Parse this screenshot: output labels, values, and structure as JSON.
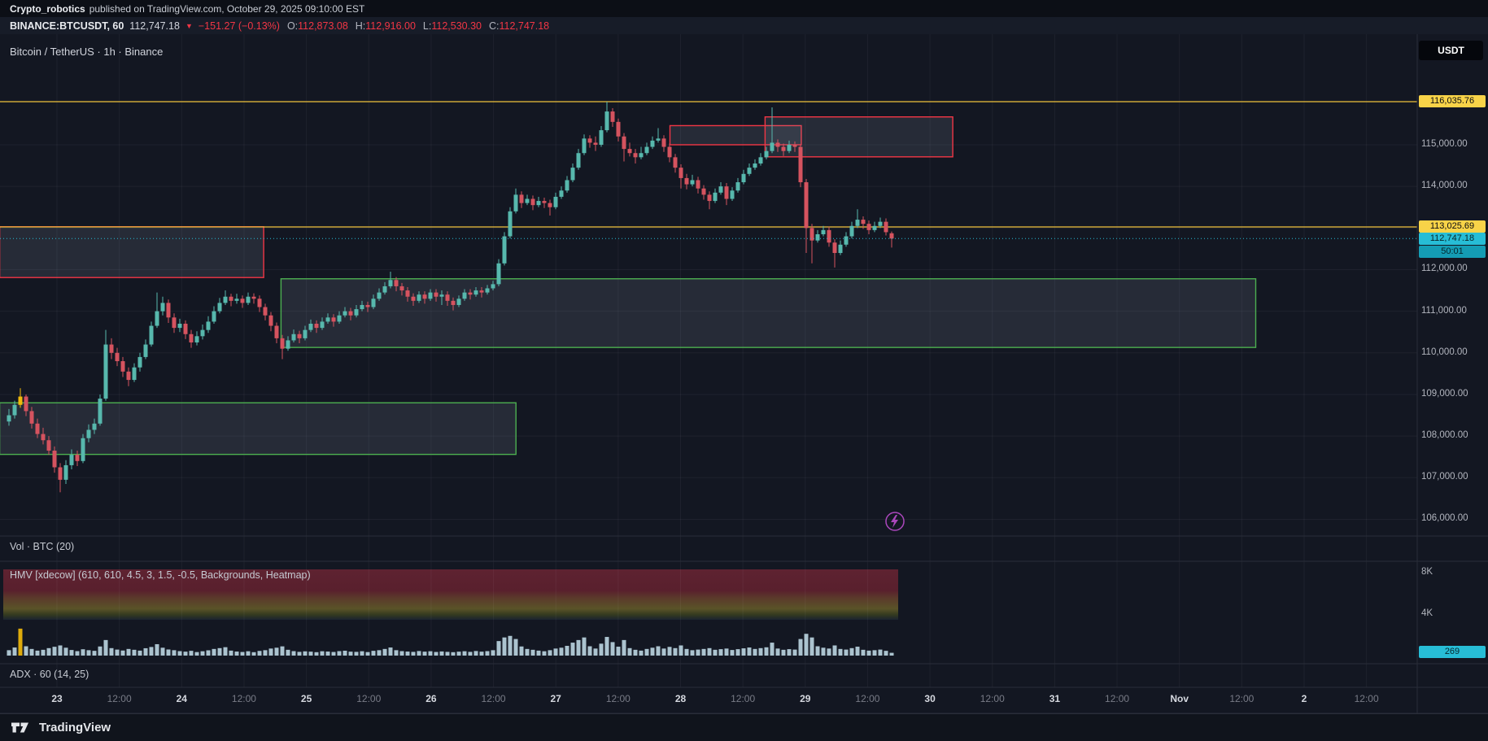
{
  "publish_bar": {
    "author": "Crypto_robotics",
    "text": "published on TradingView.com, October 29, 2025 09:10:00 EST"
  },
  "symbol_bar": {
    "symbol": "BINANCE:BTCUSDT, 60",
    "last": "112,747.18",
    "direction_icon": "▼",
    "change": "−151.27 (−0.13%)",
    "ohlc": [
      {
        "label": "O:",
        "value": "112,873.08"
      },
      {
        "label": "H:",
        "value": "112,916.00"
      },
      {
        "label": "L:",
        "value": "112,530.30"
      },
      {
        "label": "C:",
        "value": "112,747.18"
      }
    ]
  },
  "chart_header": {
    "title": "Bitcoin / TetherUS · 1h · Binance"
  },
  "currency_button": {
    "label": "USDT"
  },
  "panes": {
    "vol_label": "Vol · BTC (20)",
    "hmv_label": "HMV [xdecow] (610, 610, 4.5, 3, 1.5, -0.5, Backgrounds, Heatmap)",
    "adx_label": "ADX · 60 (14, 25)",
    "volume_axis": [
      {
        "v": 8000,
        "label": "8K"
      },
      {
        "v": 4000,
        "label": "4K"
      }
    ],
    "volume_current": "269"
  },
  "price_axis": {
    "labels": [
      {
        "price": 115000,
        "label": "115,000.00"
      },
      {
        "price": 114000,
        "label": "114,000.00"
      },
      {
        "price": 112000,
        "label": "112,000.00"
      },
      {
        "price": 111000,
        "label": "111,000.00"
      },
      {
        "price": 110000,
        "label": "110,000.00"
      },
      {
        "price": 109000,
        "label": "109,000.00"
      },
      {
        "price": 108000,
        "label": "108,000.00"
      },
      {
        "price": 107000,
        "label": "107,000.00"
      },
      {
        "price": 106000,
        "label": "106,000.00"
      }
    ]
  },
  "time_axis": {
    "labels": [
      {
        "text": "23",
        "major": true
      },
      {
        "text": "12:00",
        "major": false
      },
      {
        "text": "24",
        "major": true
      },
      {
        "text": "12:00",
        "major": false
      },
      {
        "text": "25",
        "major": true
      },
      {
        "text": "12:00",
        "major": false
      },
      {
        "text": "26",
        "major": true
      },
      {
        "text": "12:00",
        "major": false
      },
      {
        "text": "27",
        "major": true
      },
      {
        "text": "12:00",
        "major": false
      },
      {
        "text": "28",
        "major": true
      },
      {
        "text": "12:00",
        "major": false
      },
      {
        "text": "29",
        "major": true
      },
      {
        "text": "12:00",
        "major": false
      },
      {
        "text": "30",
        "major": true
      },
      {
        "text": "12:00",
        "major": false
      },
      {
        "text": "31",
        "major": true
      },
      {
        "text": "12:00",
        "major": false
      },
      {
        "text": "Nov",
        "major": true
      },
      {
        "text": "12:00",
        "major": false
      },
      {
        "text": "2",
        "major": true
      },
      {
        "text": "12:00",
        "major": false
      }
    ]
  },
  "footer": {
    "brand": "TradingView"
  },
  "colors": {
    "bg": "#131722",
    "up": "#57b8ad",
    "down": "#d5535f",
    "yellow_line": "#f0c23c",
    "yellow_label_bg": "#f8d348",
    "cyan_label_bg": "#27bdd6",
    "zone_fill": "rgba(150,160,182,0.15)",
    "grid": "rgba(240,243,250,0.05)",
    "sep": "#2a2e39",
    "vol_bar": "#b9d2de",
    "vol_highlight": "#f0b90b",
    "boost": "#ab47bc",
    "heatmap_stops": [
      [
        "0",
        "#5e2231"
      ],
      [
        "0.42",
        "#59202d"
      ],
      [
        "0.56",
        "#5b392b"
      ],
      [
        "0.78",
        "#5a5328"
      ],
      [
        "0.9",
        "#343a20"
      ],
      [
        "1",
        "#1b2330"
      ]
    ]
  },
  "chart_data": {
    "type": "candlestick",
    "symbol": "BINANCE:BTCUSDT",
    "interval": "1h",
    "title": "Bitcoin / TetherUS · 1h · Binance",
    "ylim": [
      105800,
      117700
    ],
    "grid_prices": [
      106000,
      107000,
      108000,
      109000,
      110000,
      111000,
      112000,
      113000,
      114000,
      115000
    ],
    "price_lines": [
      {
        "price": 116035.76,
        "label": "116,035.76"
      },
      {
        "price": 113025.69,
        "label": "113,025.69"
      }
    ],
    "current": {
      "price": 112747.18,
      "label": "112,747.18",
      "countdown": "50:01"
    },
    "highlight_candle_index": 2,
    "zones": [
      {
        "name": "supply-left",
        "border": "#f23645",
        "price_top": 113030,
        "price_bottom": 111810,
        "i1": -1.2,
        "i2": 44.3
      },
      {
        "name": "demand-main",
        "border": "#4caf50",
        "price_top": 111780,
        "price_bottom": 110130,
        "i1": 48.2,
        "i2": 218.5
      },
      {
        "name": "demand-low",
        "border": "#4caf50",
        "price_top": 108800,
        "price_bottom": 107560,
        "i1": -1.2,
        "i2": 88.6
      },
      {
        "name": "supply-a",
        "border": "#f23645",
        "price_top": 115460,
        "price_bottom": 115000,
        "i1": 116.5,
        "i2": 138.7
      },
      {
        "name": "supply-b",
        "border": "#f23645",
        "price_top": 115670,
        "price_bottom": 114710,
        "i1": 133.2,
        "i2": 165.3
      }
    ],
    "ohlc": [
      [
        108350,
        108650,
        108250,
        108500
      ],
      [
        108500,
        108850,
        108420,
        108750
      ],
      [
        108750,
        109150,
        108680,
        108950
      ],
      [
        108950,
        109000,
        108480,
        108600
      ],
      [
        108600,
        108700,
        108180,
        108300
      ],
      [
        108300,
        108420,
        107950,
        108050
      ],
      [
        108050,
        108200,
        107800,
        107900
      ],
      [
        107900,
        108000,
        107550,
        107650
      ],
      [
        107650,
        107750,
        107120,
        107250
      ],
      [
        107250,
        107350,
        106650,
        106950
      ],
      [
        106950,
        107420,
        106850,
        107300
      ],
      [
        107300,
        107680,
        107200,
        107550
      ],
      [
        107550,
        107650,
        107280,
        107400
      ],
      [
        107400,
        108050,
        107350,
        107950
      ],
      [
        107950,
        108280,
        107850,
        108150
      ],
      [
        108150,
        108420,
        108050,
        108300
      ],
      [
        108300,
        109000,
        108250,
        108900
      ],
      [
        108900,
        110550,
        108850,
        110200
      ],
      [
        110200,
        110350,
        109850,
        110000
      ],
      [
        110000,
        110120,
        109680,
        109800
      ],
      [
        109800,
        109900,
        109420,
        109550
      ],
      [
        109550,
        109650,
        109200,
        109350
      ],
      [
        109350,
        109750,
        109300,
        109650
      ],
      [
        109650,
        110000,
        109550,
        109900
      ],
      [
        109900,
        110320,
        109850,
        110200
      ],
      [
        110200,
        110750,
        110150,
        110650
      ],
      [
        110650,
        111450,
        110600,
        111000
      ],
      [
        111000,
        111350,
        110900,
        111200
      ],
      [
        111200,
        111280,
        110720,
        110850
      ],
      [
        110850,
        110950,
        110480,
        110600
      ],
      [
        110600,
        110820,
        110500,
        110700
      ],
      [
        110700,
        110780,
        110330,
        110450
      ],
      [
        110450,
        110550,
        110120,
        110250
      ],
      [
        110250,
        110520,
        110180,
        110400
      ],
      [
        110400,
        110680,
        110320,
        110550
      ],
      [
        110550,
        110880,
        110480,
        110750
      ],
      [
        110750,
        111120,
        110700,
        111000
      ],
      [
        111000,
        111320,
        110950,
        111200
      ],
      [
        111200,
        111500,
        111150,
        111350
      ],
      [
        111350,
        111420,
        111120,
        111250
      ],
      [
        111250,
        111420,
        111180,
        111300
      ],
      [
        111300,
        111380,
        111080,
        111200
      ],
      [
        111200,
        111450,
        111150,
        111350
      ],
      [
        111350,
        111430,
        111180,
        111300
      ],
      [
        111300,
        111380,
        110980,
        111100
      ],
      [
        111100,
        111180,
        110780,
        110900
      ],
      [
        110900,
        110980,
        110520,
        110650
      ],
      [
        110650,
        110730,
        110230,
        110350
      ],
      [
        110350,
        110430,
        109850,
        110100
      ],
      [
        110100,
        110400,
        110050,
        110300
      ],
      [
        110300,
        110560,
        110250,
        110450
      ],
      [
        110450,
        110530,
        110230,
        110350
      ],
      [
        110350,
        110650,
        110300,
        110550
      ],
      [
        110550,
        110800,
        110500,
        110700
      ],
      [
        110700,
        110780,
        110480,
        110600
      ],
      [
        110600,
        110850,
        110550,
        110750
      ],
      [
        110750,
        110950,
        110700,
        110850
      ],
      [
        110850,
        110930,
        110630,
        110750
      ],
      [
        110750,
        111000,
        110700,
        110900
      ],
      [
        110900,
        111100,
        110850,
        111000
      ],
      [
        111000,
        111080,
        110780,
        110900
      ],
      [
        110900,
        111150,
        110850,
        111050
      ],
      [
        111050,
        111250,
        111000,
        111150
      ],
      [
        111150,
        111230,
        110980,
        111100
      ],
      [
        111100,
        111400,
        111050,
        111300
      ],
      [
        111300,
        111550,
        111250,
        111450
      ],
      [
        111450,
        111700,
        111400,
        111600
      ],
      [
        111600,
        111950,
        111550,
        111750
      ],
      [
        111750,
        111820,
        111480,
        111600
      ],
      [
        111600,
        111680,
        111380,
        111500
      ],
      [
        111500,
        111580,
        111230,
        111350
      ],
      [
        111350,
        111430,
        111130,
        111250
      ],
      [
        111250,
        111480,
        111200,
        111400
      ],
      [
        111400,
        111480,
        111180,
        111300
      ],
      [
        111300,
        111530,
        111250,
        111450
      ],
      [
        111450,
        111530,
        111230,
        111350
      ],
      [
        111350,
        111500,
        111150,
        111400
      ],
      [
        111400,
        111480,
        111130,
        111250
      ],
      [
        111250,
        111330,
        111020,
        111150
      ],
      [
        111150,
        111380,
        111100,
        111300
      ],
      [
        111300,
        111530,
        111250,
        111450
      ],
      [
        111450,
        111530,
        111280,
        111400
      ],
      [
        111400,
        111580,
        111350,
        111500
      ],
      [
        111500,
        111580,
        111330,
        111450
      ],
      [
        111450,
        111630,
        111400,
        111550
      ],
      [
        111550,
        111730,
        111500,
        111650
      ],
      [
        111650,
        112250,
        111600,
        112150
      ],
      [
        112150,
        112900,
        112100,
        112800
      ],
      [
        112800,
        113500,
        112750,
        113400
      ],
      [
        113400,
        113950,
        113350,
        113800
      ],
      [
        113800,
        113880,
        113480,
        113600
      ],
      [
        113600,
        113800,
        113550,
        113700
      ],
      [
        113700,
        113780,
        113430,
        113550
      ],
      [
        113550,
        113750,
        113500,
        113650
      ],
      [
        113650,
        113730,
        113480,
        113600
      ],
      [
        113600,
        113680,
        113300,
        113500
      ],
      [
        113500,
        113850,
        113450,
        113750
      ],
      [
        113750,
        114000,
        113700,
        113900
      ],
      [
        113900,
        114250,
        113850,
        114150
      ],
      [
        114150,
        114550,
        114100,
        114450
      ],
      [
        114450,
        114900,
        114400,
        114800
      ],
      [
        114800,
        115250,
        114750,
        115150
      ],
      [
        115150,
        115230,
        114930,
        115050
      ],
      [
        115050,
        115200,
        114850,
        115000
      ],
      [
        115000,
        115450,
        114950,
        115350
      ],
      [
        115350,
        116035,
        115300,
        115800
      ],
      [
        115800,
        115880,
        115430,
        115550
      ],
      [
        115550,
        115630,
        115080,
        115200
      ],
      [
        115200,
        115280,
        114600,
        114900
      ],
      [
        114900,
        115050,
        114720,
        114800
      ],
      [
        114800,
        114900,
        114550,
        114700
      ],
      [
        114700,
        114950,
        114650,
        114800
      ],
      [
        114800,
        115050,
        114750,
        114950
      ],
      [
        114950,
        115200,
        114900,
        115100
      ],
      [
        115100,
        115400,
        115050,
        115150
      ],
      [
        115150,
        115230,
        114830,
        114950
      ],
      [
        114950,
        115030,
        114580,
        114700
      ],
      [
        114700,
        114780,
        114330,
        114450
      ],
      [
        114450,
        114530,
        113950,
        114200
      ],
      [
        114200,
        114300,
        113930,
        114050
      ],
      [
        114050,
        114280,
        114000,
        114150
      ],
      [
        114150,
        114230,
        113830,
        113950
      ],
      [
        113950,
        114030,
        113680,
        113800
      ],
      [
        113800,
        113880,
        113450,
        113650
      ],
      [
        113650,
        113950,
        113600,
        113850
      ],
      [
        113850,
        114100,
        113800,
        114000
      ],
      [
        114000,
        114080,
        113550,
        113700
      ],
      [
        113700,
        113980,
        113650,
        113900
      ],
      [
        113900,
        114200,
        113850,
        114100
      ],
      [
        114100,
        114400,
        114050,
        114300
      ],
      [
        114300,
        114550,
        114250,
        114450
      ],
      [
        114450,
        114650,
        114400,
        114550
      ],
      [
        114550,
        114800,
        114500,
        114700
      ],
      [
        114700,
        114950,
        114650,
        114850
      ],
      [
        114850,
        115900,
        114800,
        115050
      ],
      [
        115050,
        115130,
        114830,
        114950
      ],
      [
        114950,
        115030,
        114730,
        114850
      ],
      [
        114850,
        115100,
        114800,
        115000
      ],
      [
        115000,
        115080,
        114830,
        114950
      ],
      [
        114950,
        115000,
        113980,
        114100
      ],
      [
        114100,
        114180,
        112400,
        113000
      ],
      [
        113000,
        113100,
        112150,
        112700
      ],
      [
        112700,
        112950,
        112650,
        112850
      ],
      [
        112850,
        113050,
        112800,
        112950
      ],
      [
        112950,
        113030,
        112550,
        112650
      ],
      [
        112650,
        112730,
        112050,
        112400
      ],
      [
        112400,
        112700,
        112350,
        112600
      ],
      [
        112600,
        112900,
        112550,
        112800
      ],
      [
        112800,
        113150,
        112750,
        113050
      ],
      [
        113050,
        113450,
        113000,
        113200
      ],
      [
        113200,
        113280,
        112980,
        113100
      ],
      [
        113100,
        113180,
        112850,
        112950
      ],
      [
        112950,
        113150,
        112900,
        113050
      ],
      [
        113050,
        113250,
        113000,
        113150
      ],
      [
        113150,
        113230,
        112820,
        112900
      ],
      [
        112873,
        112916,
        112530,
        112747
      ]
    ],
    "volumes": [
      520,
      780,
      2600,
      900,
      640,
      480,
      560,
      720,
      850,
      980,
      760,
      540,
      430,
      610,
      520,
      460,
      880,
      1500,
      720,
      580,
      490,
      640,
      560,
      480,
      710,
      830,
      1100,
      760,
      590,
      520,
      430,
      380,
      460,
      340,
      420,
      510,
      640,
      720,
      810,
      480,
      390,
      350,
      420,
      330,
      450,
      520,
      680,
      760,
      890,
      560,
      430,
      360,
      410,
      380,
      330,
      420,
      390,
      350,
      430,
      470,
      380,
      360,
      420,
      340,
      460,
      520,
      640,
      780,
      520,
      430,
      390,
      360,
      440,
      380,
      420,
      350,
      400,
      360,
      330,
      380,
      420,
      360,
      440,
      380,
      430,
      520,
      1400,
      1750,
      1900,
      1600,
      880,
      640,
      560,
      480,
      420,
      520,
      680,
      760,
      940,
      1250,
      1500,
      1750,
      900,
      680,
      1150,
      1800,
      1300,
      860,
      1500,
      720,
      560,
      480,
      640,
      760,
      900,
      680,
      840,
      720,
      980,
      640,
      520,
      580,
      640,
      720,
      560,
      620,
      680,
      540,
      620,
      700,
      780,
      640,
      720,
      800,
      1250,
      680,
      560,
      620,
      580,
      1600,
      2100,
      1750,
      900,
      760,
      680,
      980,
      640,
      580,
      720,
      860,
      560,
      480,
      520,
      580,
      460,
      269
    ]
  }
}
